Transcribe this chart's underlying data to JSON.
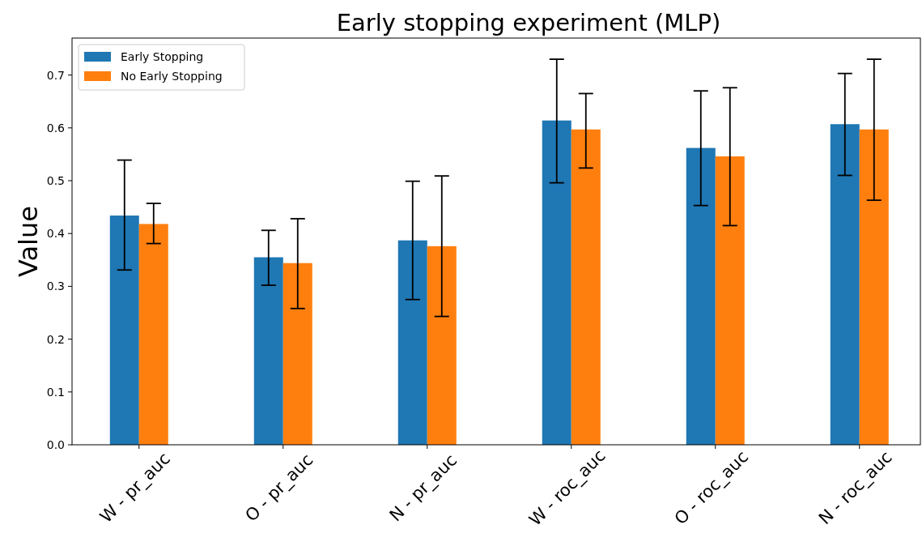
{
  "chart_data": {
    "type": "bar",
    "title": "Early stopping experiment (MLP)",
    "ylabel": "Value",
    "categories": [
      "W - pr_auc",
      "O - pr_auc",
      "N - pr_auc",
      "W - roc_auc",
      "O - roc_auc",
      "N - roc_auc"
    ],
    "series": [
      {
        "name": "Early Stopping",
        "color": "#1f77b4",
        "values": [
          0.434,
          0.355,
          0.387,
          0.614,
          0.562,
          0.607
        ],
        "errors": [
          [
            0.331,
            0.539
          ],
          [
            0.302,
            0.406
          ],
          [
            0.275,
            0.499
          ],
          [
            0.496,
            0.73
          ],
          [
            0.453,
            0.67
          ],
          [
            0.51,
            0.703
          ]
        ]
      },
      {
        "name": "No Early Stopping",
        "color": "#ff7f0e",
        "values": [
          0.418,
          0.344,
          0.376,
          0.597,
          0.546,
          0.597
        ],
        "errors": [
          [
            0.381,
            0.457
          ],
          [
            0.258,
            0.428
          ],
          [
            0.243,
            0.509
          ],
          [
            0.524,
            0.665
          ],
          [
            0.415,
            0.676
          ],
          [
            0.463,
            0.73
          ]
        ]
      }
    ],
    "ylim": [
      0,
      0.77
    ],
    "yticks": [
      {
        "value": 0,
        "label": "0.0"
      },
      {
        "value": 0.1,
        "label": "0.1"
      },
      {
        "value": 0.2,
        "label": "0.2"
      },
      {
        "value": 0.3,
        "label": "0.3"
      },
      {
        "value": 0.4,
        "label": "0.4"
      },
      {
        "value": 0.5,
        "label": "0.5"
      },
      {
        "value": 0.6,
        "label": "0.6"
      },
      {
        "value": 0.7,
        "label": "0.7"
      }
    ],
    "legend": "top left",
    "grid": false
  }
}
